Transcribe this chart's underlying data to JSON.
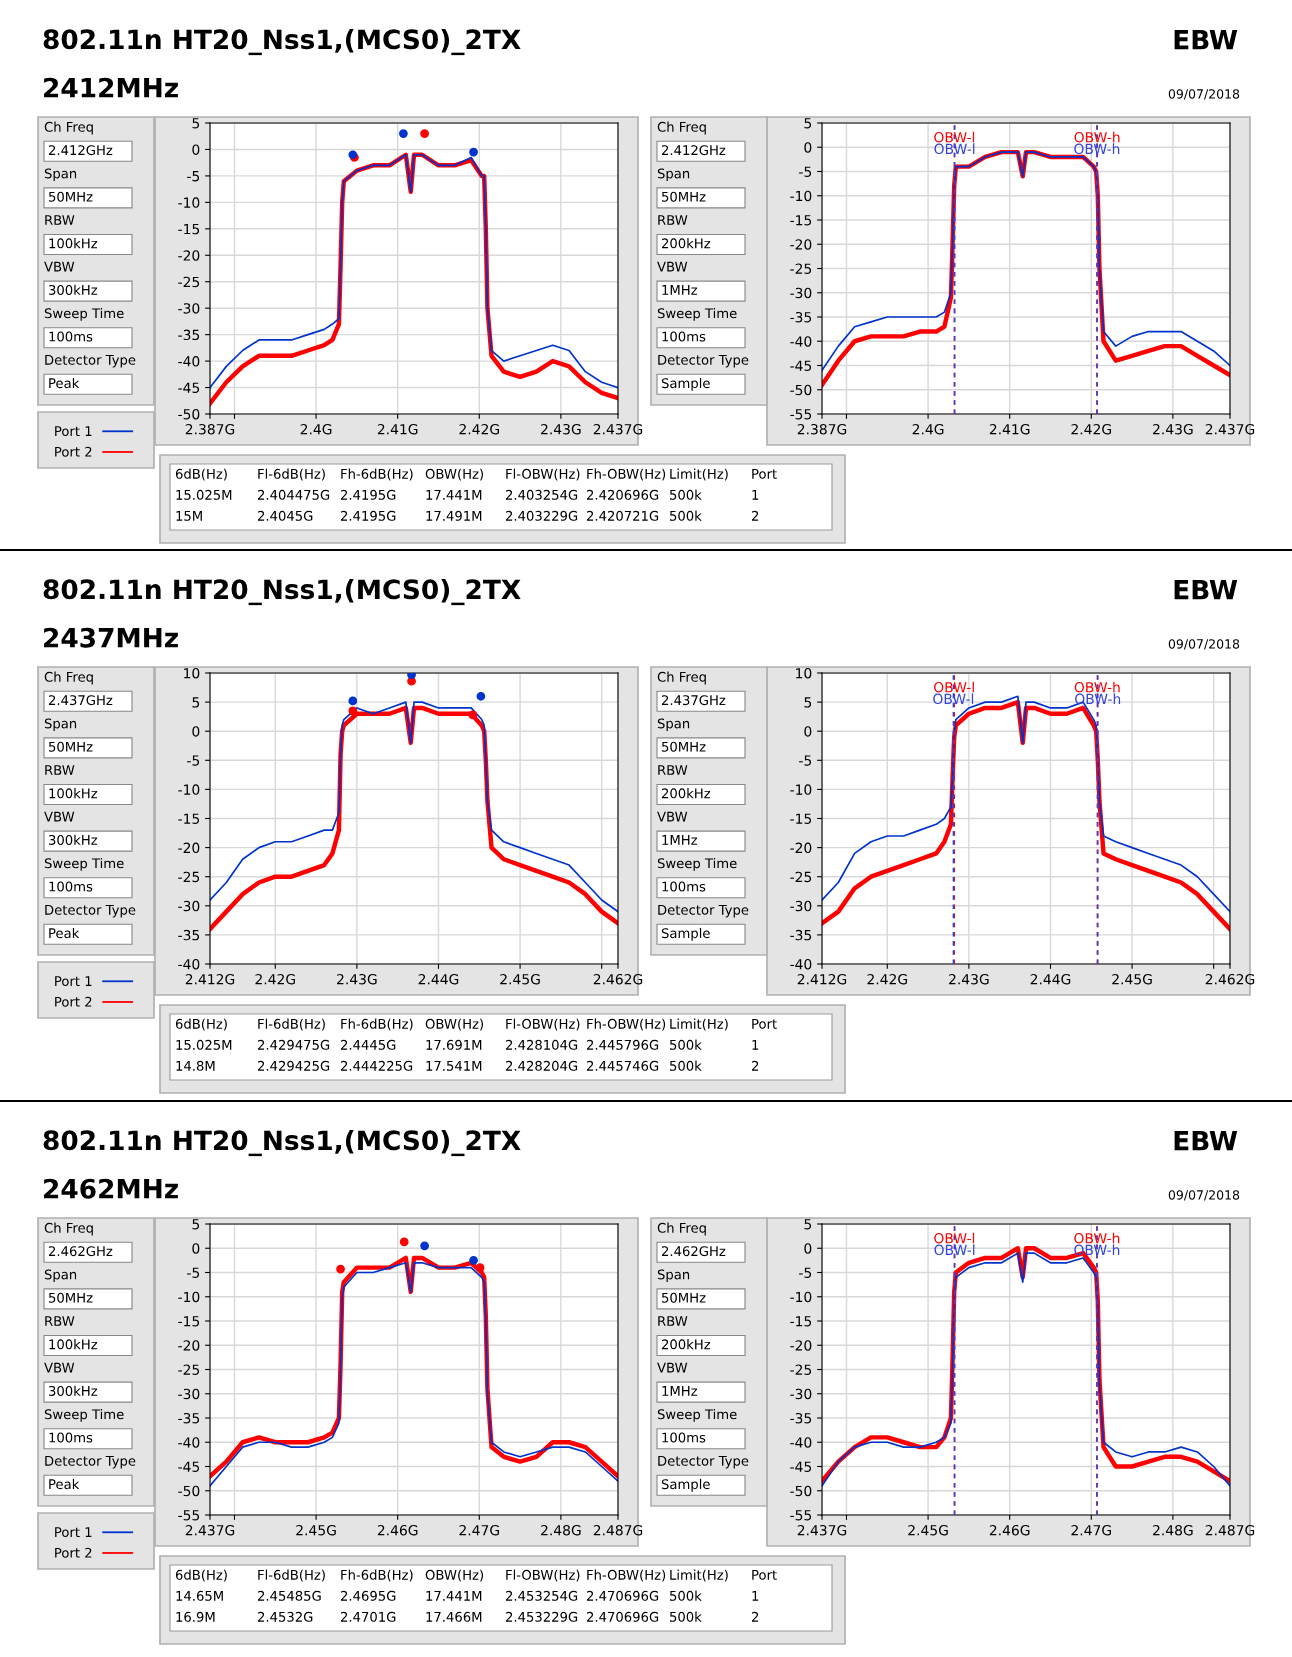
{
  "chart_data": [
    {
      "type": "other",
      "title": "802.11n HT20_Nss1,(MCS0)_2TX",
      "subtitle": "2412MHz",
      "annotations": [
        "EBW",
        "09/07/2018",
        "6dB(Hz)",
        "Fl-6dB(Hz)",
        "Fh-6dB(Hz)",
        "OBW(Hz)",
        "Fl-OBW(Hz)",
        "Fh-OBW(Hz)",
        "Limit(Hz)",
        "Port",
        "15.025M",
        "2.404475G",
        "2.4195G",
        "17.441M",
        "2.403254G",
        "2.420696G",
        "500k",
        "1",
        "15M",
        "2.4045G",
        "2.4195G",
        "17.491M",
        "2.403229G",
        "2.420721G",
        "500k",
        "2"
      ]
    },
    {
      "type": "line",
      "x": [
        2.387,
        2.389,
        2.391,
        2.393,
        2.395,
        2.397,
        2.399,
        2.401,
        2.402,
        2.4028,
        2.403,
        2.4032,
        2.4034,
        2.405,
        2.407,
        2.409,
        2.411,
        2.4116,
        2.412,
        2.413,
        2.415,
        2.417,
        2.419,
        2.4203,
        2.4206,
        2.4208,
        2.421,
        2.4215,
        2.423,
        2.425,
        2.427,
        2.429,
        2.431,
        2.433,
        2.435,
        2.437
      ],
      "xlim": [
        2.387,
        2.437
      ],
      "xticks": [
        {
          "value": 2.387,
          "label": "2.387G"
        },
        {
          "value": 2.39,
          "label": null
        },
        {
          "value": 2.4,
          "label": "2.4G"
        },
        {
          "value": 2.41,
          "label": "2.41G"
        },
        {
          "value": 2.42,
          "label": "2.42G"
        },
        {
          "value": 2.43,
          "label": "2.43G"
        },
        {
          "value": 2.437,
          "label": "2.437G"
        }
      ],
      "ylim": [
        -50,
        5
      ],
      "yticks": [
        5,
        0,
        -5,
        -10,
        -15,
        -20,
        -25,
        -30,
        -35,
        -40,
        -45,
        -50
      ],
      "grid": true,
      "legend": "bottom left",
      "annotations": [
        "Ch Freq",
        "2.412GHz",
        "Span",
        "50MHz",
        "RBW",
        "100kHz",
        "VBW",
        "300kHz",
        "Sweep Time",
        "100ms",
        "Detector Type",
        "Peak"
      ],
      "series": [
        {
          "name": "Port 2",
          "color": "#ff0000",
          "values": [
            -48,
            -44,
            -41,
            -39,
            -39,
            -39,
            -38,
            -37,
            -36,
            -33,
            -22,
            -10,
            -6,
            -4,
            -3,
            -3,
            -1,
            -8,
            -1,
            -1,
            -3,
            -3,
            -2,
            -5,
            -5,
            -15,
            -30,
            -39,
            -42,
            -43,
            -42,
            -40,
            -41,
            -44,
            -46,
            -47
          ]
        },
        {
          "name": "Port 1",
          "color": "#0033cc",
          "values": [
            -45,
            -41,
            -38,
            -36,
            -36,
            -36,
            -35,
            -34,
            -33,
            -32,
            -22,
            -10,
            -6,
            -4,
            -3,
            -3,
            -1,
            -8,
            -1,
            -1,
            -3,
            -3,
            -1.5,
            -5,
            -5,
            -15,
            -30,
            -38,
            -40,
            -39,
            -38,
            -37,
            -38,
            -42,
            -44,
            -45
          ]
        },
        {
          "type": "scatter",
          "marker": "circle",
          "color": "#ff0000",
          "x": [
            2.4047,
            2.4133
          ],
          "values": [
            -1.5,
            3
          ]
        },
        {
          "type": "scatter",
          "marker": "circle",
          "color": "#0033cc",
          "x": [
            2.4045,
            2.4107,
            2.4193
          ],
          "values": [
            -1,
            3,
            -0.5
          ]
        }
      ]
    },
    {
      "type": "line",
      "x": [
        2.387,
        2.389,
        2.391,
        2.393,
        2.395,
        2.397,
        2.399,
        2.401,
        2.402,
        2.4028,
        2.403,
        2.4032,
        2.4034,
        2.405,
        2.407,
        2.409,
        2.411,
        2.4116,
        2.412,
        2.413,
        2.415,
        2.417,
        2.419,
        2.4203,
        2.4206,
        2.4208,
        2.421,
        2.4215,
        2.423,
        2.425,
        2.427,
        2.429,
        2.431,
        2.433,
        2.435,
        2.437
      ],
      "xlim": [
        2.387,
        2.437
      ],
      "xticks": [
        {
          "value": 2.387,
          "label": "2.387G"
        },
        {
          "value": 2.39,
          "label": null
        },
        {
          "value": 2.4,
          "label": "2.4G"
        },
        {
          "value": 2.41,
          "label": "2.41G"
        },
        {
          "value": 2.42,
          "label": "2.42G"
        },
        {
          "value": 2.43,
          "label": "2.43G"
        },
        {
          "value": 2.437,
          "label": "2.437G"
        }
      ],
      "ylim": [
        -55,
        5
      ],
      "yticks": [
        5,
        0,
        -5,
        -10,
        -15,
        -20,
        -25,
        -30,
        -35,
        -40,
        -45,
        -50,
        -55
      ],
      "grid": true,
      "annotations": [
        "Ch Freq",
        "2.412GHz",
        "Span",
        "50MHz",
        "RBW",
        "200kHz",
        "VBW",
        "1MHz",
        "Sweep Time",
        "100ms",
        "Detector Type",
        "Sample"
      ],
      "ref_lines": [
        {
          "axis": "x",
          "value": 2.403229,
          "label": "OBW-l",
          "color": "#ff0000",
          "line_style": "dashed"
        },
        {
          "axis": "x",
          "value": 2.403254,
          "label": "OBW-l",
          "color": "#3344dd",
          "line_style": "dashed"
        },
        {
          "axis": "x",
          "value": 2.420721,
          "label": "OBW-h",
          "color": "#ff0000",
          "line_style": "dashed"
        },
        {
          "axis": "x",
          "value": 2.420696,
          "label": "OBW-h",
          "color": "#3344dd",
          "line_style": "dashed"
        }
      ],
      "series": [
        {
          "color": "#ff0000",
          "values": [
            -49,
            -44,
            -40,
            -39,
            -39,
            -39,
            -38,
            -38,
            -37,
            -31,
            -20,
            -8,
            -4,
            -4,
            -2,
            -1,
            -1,
            -6,
            -1,
            -1,
            -2,
            -2,
            -2,
            -4,
            -5,
            -10,
            -25,
            -40,
            -44,
            -43,
            -42,
            -41,
            -41,
            -43,
            -45,
            -47
          ]
        },
        {
          "color": "#0033cc",
          "values": [
            -46,
            -41,
            -37,
            -36,
            -35,
            -35,
            -35,
            -35,
            -34,
            -30,
            -20,
            -8,
            -4,
            -4,
            -2,
            -1,
            -1,
            -6,
            -1,
            -1,
            -2,
            -2,
            -2,
            -4,
            -5,
            -10,
            -25,
            -38,
            -41,
            -39,
            -38,
            -38,
            -38,
            -40,
            -42,
            -45
          ]
        }
      ]
    },
    {
      "type": "other",
      "title": "802.11n HT20_Nss1,(MCS0)_2TX",
      "subtitle": "2437MHz",
      "annotations": [
        "EBW",
        "09/07/2018",
        "6dB(Hz)",
        "Fl-6dB(Hz)",
        "Fh-6dB(Hz)",
        "OBW(Hz)",
        "Fl-OBW(Hz)",
        "Fh-OBW(Hz)",
        "Limit(Hz)",
        "Port",
        "15.025M",
        "2.429475G",
        "2.4445G",
        "17.691M",
        "2.428104G",
        "2.445796G",
        "500k",
        "1",
        "14.8M",
        "2.429425G",
        "2.444225G",
        "17.541M",
        "2.428204G",
        "2.445746G",
        "500k",
        "2"
      ]
    },
    {
      "type": "line",
      "x": [
        2.412,
        2.414,
        2.416,
        2.418,
        2.42,
        2.422,
        2.424,
        2.426,
        2.427,
        2.4278,
        2.428,
        2.4282,
        2.4284,
        2.43,
        2.432,
        2.434,
        2.436,
        2.4366,
        2.437,
        2.438,
        2.44,
        2.442,
        2.444,
        2.4453,
        2.4456,
        2.4458,
        2.446,
        2.4465,
        2.448,
        2.45,
        2.452,
        2.454,
        2.456,
        2.458,
        2.46,
        2.462
      ],
      "xlim": [
        2.412,
        2.462
      ],
      "xticks": [
        {
          "value": 2.412,
          "label": "2.412G"
        },
        {
          "value": 2.42,
          "label": "2.42G"
        },
        {
          "value": 2.43,
          "label": "2.43G"
        },
        {
          "value": 2.44,
          "label": "2.44G"
        },
        {
          "value": 2.45,
          "label": "2.45G"
        },
        {
          "value": 2.46,
          "label": null
        },
        {
          "value": 2.462,
          "label": "2.462G"
        }
      ],
      "ylim": [
        -40,
        10
      ],
      "yticks": [
        10,
        5,
        0,
        -5,
        -10,
        -15,
        -20,
        -25,
        -30,
        -35,
        -40
      ],
      "grid": true,
      "legend": "bottom left",
      "annotations": [
        "Ch Freq",
        "2.437GHz",
        "Span",
        "50MHz",
        "RBW",
        "100kHz",
        "VBW",
        "300kHz",
        "Sweep Time",
        "100ms",
        "Detector Type",
        "Peak"
      ],
      "series": [
        {
          "name": "Port 2",
          "color": "#ff0000",
          "values": [
            -34,
            -31,
            -28,
            -26,
            -25,
            -25,
            -24,
            -23,
            -21,
            -17,
            -4,
            0,
            1,
            3,
            3,
            3,
            4,
            -2,
            4,
            4,
            3,
            3,
            3,
            1,
            0,
            -5,
            -12,
            -20,
            -22,
            -23,
            -24,
            -25,
            -26,
            -28,
            -31,
            -33
          ]
        },
        {
          "name": "Port 1",
          "color": "#0033cc",
          "values": [
            -29,
            -26,
            -22,
            -20,
            -19,
            -19,
            -18,
            -17,
            -17,
            -14,
            -4,
            1,
            2,
            4,
            3,
            4,
            5,
            -2,
            5,
            5,
            4,
            4,
            4,
            2,
            1,
            -5,
            -12,
            -17,
            -19,
            -20,
            -21,
            -22,
            -23,
            -26,
            -29,
            -31
          ]
        },
        {
          "type": "scatter",
          "marker": "circle",
          "color": "#ff0000",
          "x": [
            2.4295,
            2.4367,
            2.4442
          ],
          "values": [
            3.5,
            8.6,
            2.8
          ]
        },
        {
          "type": "scatter",
          "marker": "circle",
          "color": "#0033cc",
          "x": [
            2.4295,
            2.4367,
            2.4452
          ],
          "values": [
            5.2,
            9.7,
            6
          ]
        }
      ]
    },
    {
      "type": "line",
      "x": [
        2.412,
        2.414,
        2.416,
        2.418,
        2.42,
        2.422,
        2.424,
        2.426,
        2.427,
        2.4278,
        2.428,
        2.4282,
        2.4284,
        2.43,
        2.432,
        2.434,
        2.436,
        2.4366,
        2.437,
        2.438,
        2.44,
        2.442,
        2.444,
        2.4453,
        2.4456,
        2.4458,
        2.446,
        2.4465,
        2.448,
        2.45,
        2.452,
        2.454,
        2.456,
        2.458,
        2.46,
        2.462
      ],
      "xlim": [
        2.412,
        2.462
      ],
      "xticks": [
        {
          "value": 2.412,
          "label": "2.412G"
        },
        {
          "value": 2.42,
          "label": "2.42G"
        },
        {
          "value": 2.43,
          "label": "2.43G"
        },
        {
          "value": 2.44,
          "label": "2.44G"
        },
        {
          "value": 2.45,
          "label": "2.45G"
        },
        {
          "value": 2.46,
          "label": null
        },
        {
          "value": 2.462,
          "label": "2.462G"
        }
      ],
      "ylim": [
        -40,
        10
      ],
      "yticks": [
        10,
        5,
        0,
        -5,
        -10,
        -15,
        -20,
        -25,
        -30,
        -35,
        -40
      ],
      "grid": true,
      "annotations": [
        "Ch Freq",
        "2.437GHz",
        "Span",
        "50MHz",
        "RBW",
        "200kHz",
        "VBW",
        "1MHz",
        "Sweep Time",
        "100ms",
        "Detector Type",
        "Sample"
      ],
      "ref_lines": [
        {
          "axis": "x",
          "value": 2.428204,
          "label": "OBW-l",
          "color": "#ff0000",
          "line_style": "dashed"
        },
        {
          "axis": "x",
          "value": 2.428104,
          "label": "OBW-l",
          "color": "#3344dd",
          "line_style": "dashed"
        },
        {
          "axis": "x",
          "value": 2.445746,
          "label": "OBW-h",
          "color": "#ff0000",
          "line_style": "dashed"
        },
        {
          "axis": "x",
          "value": 2.445796,
          "label": "OBW-h",
          "color": "#3344dd",
          "line_style": "dashed"
        }
      ],
      "series": [
        {
          "color": "#ff0000",
          "values": [
            -33,
            -31,
            -27,
            -25,
            -24,
            -23,
            -22,
            -21,
            -19,
            -16,
            -8,
            -1,
            1,
            3,
            4,
            4,
            5,
            -2,
            4,
            4,
            3,
            3,
            4,
            1,
            0,
            -5,
            -12,
            -21,
            -22,
            -23,
            -24,
            -25,
            -26,
            -28,
            -31,
            -34
          ]
        },
        {
          "color": "#0033cc",
          "values": [
            -29,
            -26,
            -21,
            -19,
            -18,
            -18,
            -17,
            -16,
            -15,
            -13,
            -8,
            -1,
            2,
            4,
            5,
            5,
            6,
            -2,
            5,
            5,
            4,
            4,
            5,
            2,
            1,
            -5,
            -12,
            -18,
            -19,
            -20,
            -21,
            -22,
            -23,
            -25,
            -28,
            -31
          ]
        }
      ]
    },
    {
      "type": "other",
      "title": "802.11n HT20_Nss1,(MCS0)_2TX",
      "subtitle": "2462MHz",
      "annotations": [
        "EBW",
        "09/07/2018",
        "6dB(Hz)",
        "Fl-6dB(Hz)",
        "Fh-6dB(Hz)",
        "OBW(Hz)",
        "Fl-OBW(Hz)",
        "Fh-OBW(Hz)",
        "Limit(Hz)",
        "Port",
        "14.65M",
        "2.45485G",
        "2.4695G",
        "17.441M",
        "2.453254G",
        "2.470696G",
        "500k",
        "1",
        "16.9M",
        "2.4532G",
        "2.4701G",
        "17.466M",
        "2.453229G",
        "2.470696G",
        "500k",
        "2"
      ]
    },
    {
      "type": "line",
      "x": [
        2.437,
        2.439,
        2.441,
        2.443,
        2.445,
        2.447,
        2.449,
        2.451,
        2.452,
        2.4528,
        2.453,
        2.4532,
        2.4534,
        2.455,
        2.457,
        2.459,
        2.461,
        2.4616,
        2.462,
        2.463,
        2.465,
        2.467,
        2.469,
        2.4703,
        2.4706,
        2.4708,
        2.471,
        2.4715,
        2.473,
        2.475,
        2.477,
        2.479,
        2.481,
        2.483,
        2.485,
        2.487
      ],
      "xlim": [
        2.437,
        2.487
      ],
      "xticks": [
        {
          "value": 2.437,
          "label": "2.437G"
        },
        {
          "value": 2.44,
          "label": null
        },
        {
          "value": 2.45,
          "label": "2.45G"
        },
        {
          "value": 2.46,
          "label": "2.46G"
        },
        {
          "value": 2.47,
          "label": "2.47G"
        },
        {
          "value": 2.48,
          "label": "2.48G"
        },
        {
          "value": 2.487,
          "label": "2.487G"
        }
      ],
      "ylim": [
        -55,
        5
      ],
      "yticks": [
        5,
        0,
        -5,
        -10,
        -15,
        -20,
        -25,
        -30,
        -35,
        -40,
        -45,
        -50,
        -55
      ],
      "grid": true,
      "legend": "bottom left",
      "annotations": [
        "Ch Freq",
        "2.462GHz",
        "Span",
        "50MHz",
        "RBW",
        "100kHz",
        "VBW",
        "300kHz",
        "Sweep Time",
        "100ms",
        "Detector Type",
        "Peak"
      ],
      "series": [
        {
          "name": "Port 2",
          "color": "#ff0000",
          "values": [
            -47,
            -44,
            -40,
            -39,
            -40,
            -40,
            -40,
            -39,
            -38,
            -35,
            -24,
            -9,
            -7,
            -4,
            -4,
            -4,
            -2,
            -9,
            -2,
            -2,
            -4,
            -4,
            -3,
            -5,
            -6,
            -14,
            -29,
            -41,
            -43,
            -44,
            -43,
            -40,
            -40,
            -41,
            -44,
            -47
          ]
        },
        {
          "name": "Port 1",
          "color": "#0033cc",
          "values": [
            -49,
            -45,
            -41,
            -40,
            -40,
            -41,
            -41,
            -40,
            -39,
            -36,
            -25,
            -10,
            -8,
            -5,
            -5,
            -4,
            -3,
            -9,
            -3,
            -3,
            -4,
            -4,
            -4,
            -6,
            -7,
            -15,
            -30,
            -40,
            -42,
            -43,
            -42,
            -41,
            -41,
            -42,
            -45,
            -48
          ]
        },
        {
          "type": "scatter",
          "marker": "circle",
          "color": "#ff0000",
          "x": [
            2.453,
            2.4608,
            2.4701
          ],
          "values": [
            -4.3,
            1.3,
            -4
          ]
        },
        {
          "type": "scatter",
          "marker": "circle",
          "color": "#0033cc",
          "x": [
            2.4633,
            2.4693
          ],
          "values": [
            0.5,
            -2.5
          ]
        }
      ]
    },
    {
      "type": "line",
      "x": [
        2.437,
        2.439,
        2.441,
        2.443,
        2.445,
        2.447,
        2.449,
        2.451,
        2.452,
        2.4528,
        2.453,
        2.4532,
        2.4534,
        2.455,
        2.457,
        2.459,
        2.461,
        2.4616,
        2.462,
        2.463,
        2.465,
        2.467,
        2.469,
        2.4703,
        2.4706,
        2.4708,
        2.471,
        2.4715,
        2.473,
        2.475,
        2.477,
        2.479,
        2.481,
        2.483,
        2.485,
        2.487
      ],
      "xlim": [
        2.437,
        2.487
      ],
      "xticks": [
        {
          "value": 2.437,
          "label": "2.437G"
        },
        {
          "value": 2.44,
          "label": null
        },
        {
          "value": 2.45,
          "label": "2.45G"
        },
        {
          "value": 2.46,
          "label": "2.46G"
        },
        {
          "value": 2.47,
          "label": "2.47G"
        },
        {
          "value": 2.48,
          "label": "2.48G"
        },
        {
          "value": 2.487,
          "label": "2.487G"
        }
      ],
      "ylim": [
        -55,
        5
      ],
      "yticks": [
        5,
        0,
        -5,
        -10,
        -15,
        -20,
        -25,
        -30,
        -35,
        -40,
        -45,
        -50,
        -55
      ],
      "grid": true,
      "annotations": [
        "Ch Freq",
        "2.462GHz",
        "Span",
        "50MHz",
        "RBW",
        "200kHz",
        "VBW",
        "1MHz",
        "Sweep Time",
        "100ms",
        "Detector Type",
        "Sample"
      ],
      "ref_lines": [
        {
          "axis": "x",
          "value": 2.453229,
          "label": "OBW-l",
          "color": "#ff0000",
          "line_style": "dashed"
        },
        {
          "axis": "x",
          "value": 2.453254,
          "label": "OBW-l",
          "color": "#3344dd",
          "line_style": "dashed"
        },
        {
          "axis": "x",
          "value": 2.470696,
          "label": "OBW-h",
          "color": "#ff0000",
          "line_style": "dashed"
        },
        {
          "axis": "x",
          "value": 2.470696,
          "label": "OBW-h",
          "color": "#3344dd",
          "line_style": "dashed"
        }
      ],
      "series": [
        {
          "color": "#ff0000",
          "values": [
            -48,
            -44,
            -41,
            -39,
            -39,
            -40,
            -41,
            -41,
            -39,
            -35,
            -23,
            -9,
            -5,
            -3,
            -2,
            -2,
            0,
            -6,
            0,
            0,
            -2,
            -2,
            -1,
            -4,
            -5,
            -11,
            -27,
            -41,
            -45,
            -45,
            -44,
            -43,
            -43,
            -44,
            -46,
            -48
          ]
        },
        {
          "color": "#0033cc",
          "values": [
            -49,
            -44,
            -41,
            -40,
            -40,
            -41,
            -41,
            -40,
            -39,
            -36,
            -25,
            -10,
            -6,
            -4,
            -3,
            -3,
            -1,
            -7,
            -1,
            -1,
            -3,
            -3,
            -2,
            -5,
            -6,
            -12,
            -28,
            -40,
            -42,
            -43,
            -42,
            -42,
            -41,
            -42,
            -45,
            -49
          ]
        }
      ]
    }
  ]
}
